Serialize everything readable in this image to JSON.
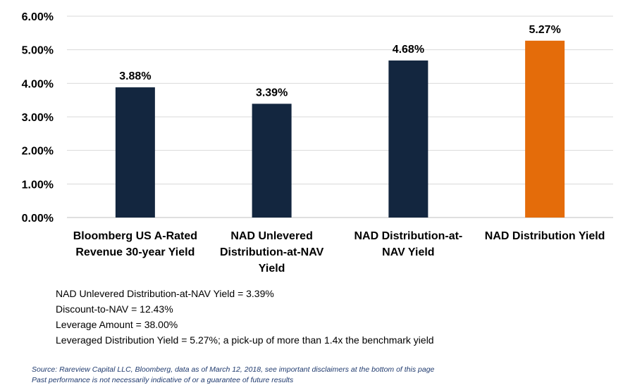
{
  "chart_data": {
    "type": "bar",
    "title": "",
    "xlabel": "",
    "ylabel": "",
    "categories": [
      [
        "Bloomberg US A-Rated",
        "Revenue 30-year Yield"
      ],
      [
        "NAD Unlevered",
        "Distribution-at-NAV",
        "Yield"
      ],
      [
        "NAD Distribution-at-",
        "NAV Yield"
      ],
      [
        "NAD Distribution Yield"
      ]
    ],
    "values": [
      3.88,
      3.39,
      4.68,
      5.27
    ],
    "value_labels": [
      "3.88%",
      "3.39%",
      "4.68%",
      "5.27%"
    ],
    "bar_colors": [
      "#13263f",
      "#13263f",
      "#13263f",
      "#e46c0a"
    ],
    "ylim": [
      0,
      6
    ],
    "yticks": [
      0,
      1,
      2,
      3,
      4,
      5,
      6
    ],
    "ytick_labels": [
      "0.00%",
      "1.00%",
      "2.00%",
      "3.00%",
      "4.00%",
      "5.00%",
      "6.00%"
    ],
    "grid": true,
    "grid_color": "#d9d9d9",
    "legend": "none"
  },
  "notes": [
    "NAD Unlevered Distribution-at-NAV Yield = 3.39%",
    "Discount-to-NAV = 12.43%",
    "Leverage Amount = 38.00%",
    "Leveraged Distribution Yield = 5.27%; a pick-up of more than 1.4x the benchmark yield"
  ],
  "source": [
    "Source: Rareview Capital LLC, Bloomberg, data as of March 12, 2018, see important disclaimers at the bottom of this page",
    "Past performance is not necessarily indicative of or a guarantee of future results"
  ]
}
